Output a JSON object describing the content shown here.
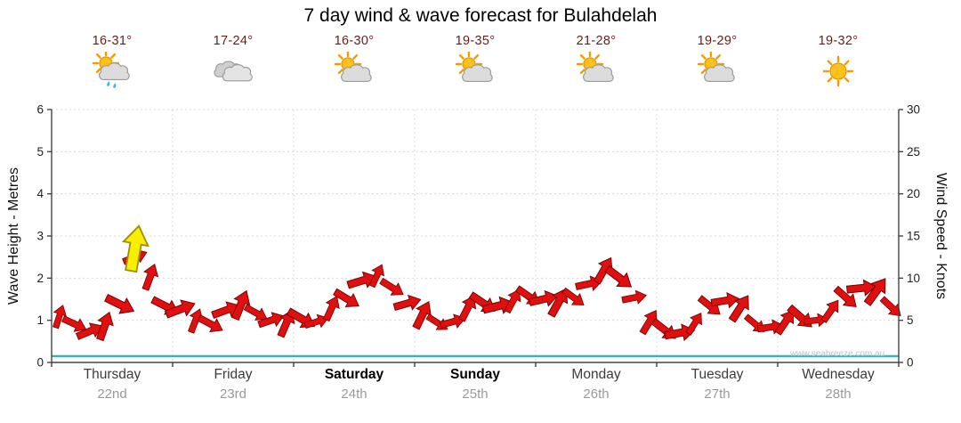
{
  "title": "7 day wind & wave forecast for Bulahdelah",
  "watermark": "www.seabreeze.com.au",
  "colors": {
    "arrow_fill": "#e01010",
    "arrow_stroke": "#7a0000",
    "highlight_fill": "#f8ef00",
    "highlight_stroke": "#a09000",
    "wave_line": "#2fb4c4",
    "temp_text": "#6d1a1a",
    "grid": "#d9d9d9",
    "axis": "#444444",
    "tick_text": "#222222",
    "weekday_text": "#3c3c3c",
    "weekend_text": "#000000",
    "date_text": "#9a9a9a",
    "watermark_text": "#c0c0c0"
  },
  "days": [
    {
      "name": "Thursday",
      "date": "22nd",
      "temp": "16-31°",
      "icon": "sun-cloud-rain",
      "bold": false
    },
    {
      "name": "Friday",
      "date": "23rd",
      "temp": "17-24°",
      "icon": "clouds",
      "bold": false
    },
    {
      "name": "Saturday",
      "date": "24th",
      "temp": "16-30°",
      "icon": "sun-cloud",
      "bold": true
    },
    {
      "name": "Sunday",
      "date": "25th",
      "temp": "19-35°",
      "icon": "sun-cloud",
      "bold": true
    },
    {
      "name": "Monday",
      "date": "26th",
      "temp": "21-28°",
      "icon": "sun-cloud",
      "bold": false
    },
    {
      "name": "Tuesday",
      "date": "27th",
      "temp": "19-29°",
      "icon": "sun-cloud",
      "bold": false
    },
    {
      "name": "Wednesday",
      "date": "28th",
      "temp": "19-32°",
      "icon": "sun",
      "bold": false
    }
  ],
  "chart_data": {
    "type": "area",
    "title": "7 day wind & wave forecast for Bulahdelah",
    "samples_per_day": 8,
    "left_axis": {
      "label": "Wave Height - Metres",
      "range": [
        0,
        6
      ],
      "ticks": [
        0,
        1,
        2,
        3,
        4,
        5,
        6
      ]
    },
    "right_axis": {
      "label": "Wind Speed - Knots",
      "range": [
        0,
        30
      ],
      "ticks": [
        0,
        5,
        10,
        15,
        20,
        25,
        30
      ]
    },
    "grid": true,
    "series": [
      {
        "name": "Wind Speed",
        "unit": "knots",
        "axis": "right",
        "color": "#e01010",
        "style": "wind-arrows",
        "values": [
          5,
          5,
          4,
          4.5,
          7,
          12.5,
          10,
          6.5,
          6,
          4.5,
          5,
          6.5,
          7,
          6,
          5,
          4.5,
          5,
          4.5,
          6,
          8,
          10,
          10.5,
          9,
          7,
          5.5,
          4.5,
          4.5,
          6,
          7.5,
          7,
          7.5,
          8,
          7.5,
          7,
          7.5,
          9,
          10.5,
          10.5,
          8,
          5,
          4,
          3.5,
          4.5,
          6.5,
          7,
          6,
          5,
          4.5,
          5,
          5.5,
          5,
          6,
          7.5,
          8.5,
          8,
          7
        ]
      },
      {
        "name": "Wave Height",
        "unit": "metres",
        "axis": "left",
        "color": "#2fb4c4",
        "style": "line",
        "values": [
          0.15,
          0.15,
          0.15,
          0.15,
          0.15,
          0.15,
          0.15,
          0.15,
          0.15,
          0.15,
          0.15,
          0.15,
          0.15,
          0.15,
          0.15,
          0.15,
          0.15,
          0.15,
          0.15,
          0.15,
          0.15,
          0.15,
          0.15,
          0.15,
          0.15,
          0.15,
          0.15,
          0.15,
          0.15,
          0.15,
          0.15,
          0.15,
          0.15,
          0.15,
          0.15,
          0.15,
          0.15,
          0.15,
          0.15,
          0.15,
          0.15,
          0.15,
          0.15,
          0.15,
          0.15,
          0.15,
          0.15,
          0.15,
          0.15,
          0.15,
          0.15,
          0.15,
          0.15,
          0.15,
          0.15,
          0.15
        ]
      }
    ],
    "highlight": {
      "series": "Wind Speed",
      "index": 5,
      "color": "#f8ef00",
      "note": "yellow arrow marker at Thursday wind peak"
    }
  }
}
